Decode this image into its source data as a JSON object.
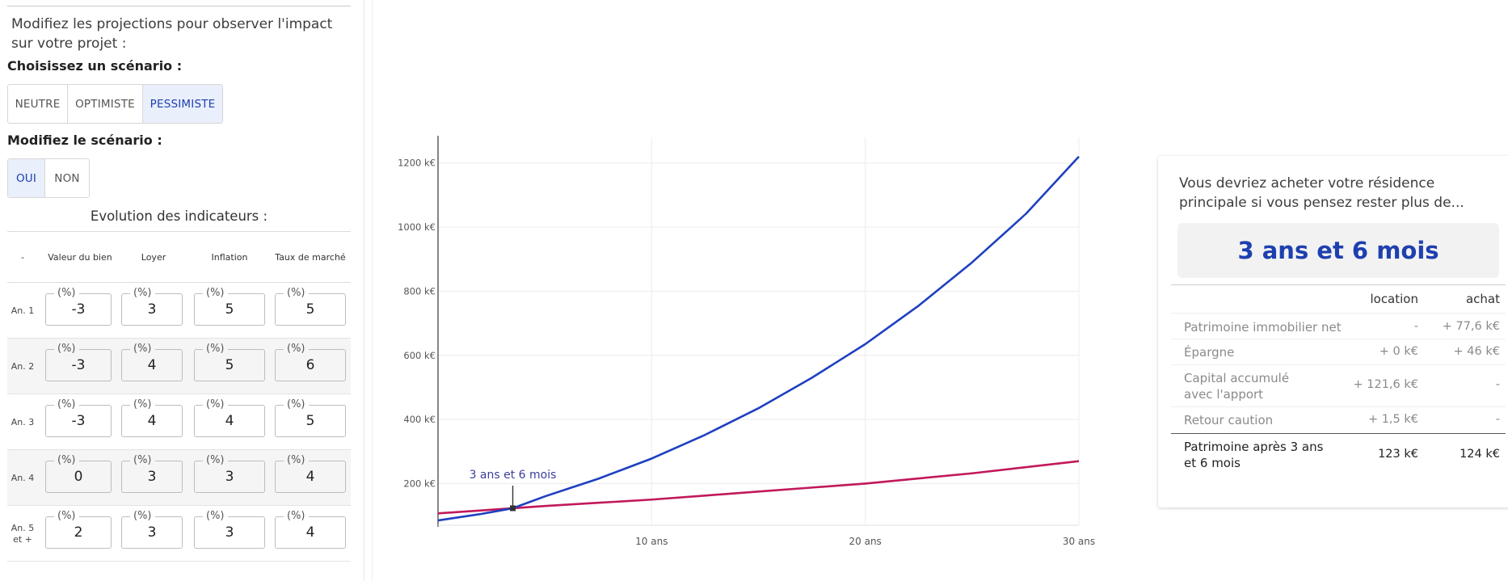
{
  "left": {
    "intro": "Modifiez les projections pour observer l'impact sur votre projet :",
    "scenario_label": "Choisissez un scénario :",
    "scenario_options": [
      "NEUTRE",
      "OPTIMISTE",
      "PESSIMISTE"
    ],
    "scenario_selected": "PESSIMISTE",
    "modify_label": "Modifiez le scénario :",
    "modify_options": [
      "OUI",
      "NON"
    ],
    "modify_selected": "OUI",
    "table_title": "Evolution des indicateurs :",
    "table_headers": [
      "-",
      "Valeur du bien",
      "Loyer",
      "Inflation",
      "Taux de marché"
    ],
    "unit_legend": "(%)",
    "rows": [
      {
        "year": "An. 1",
        "values": [
          "-3",
          "3",
          "5",
          "5"
        ]
      },
      {
        "year": "An. 2",
        "values": [
          "-3",
          "4",
          "5",
          "6"
        ]
      },
      {
        "year": "An. 3",
        "values": [
          "-3",
          "4",
          "4",
          "5"
        ]
      },
      {
        "year": "An. 4",
        "values": [
          "0",
          "3",
          "3",
          "4"
        ]
      },
      {
        "year": "An. 5 et +",
        "values": [
          "2",
          "3",
          "3",
          "4"
        ]
      }
    ]
  },
  "chart_data": {
    "type": "line",
    "title": "",
    "xlabel": "",
    "ylabel": "",
    "x_ticks": [
      "10 ans",
      "20 ans",
      "30 ans"
    ],
    "y_ticks": [
      "200 k€",
      "400 k€",
      "600 k€",
      "800 k€",
      "1000 k€",
      "1200 k€"
    ],
    "xlim": [
      0,
      30
    ],
    "ylim": [
      70,
      1280
    ],
    "series": [
      {
        "color": "#1e40c0",
        "x": [
          0,
          2,
          3.5,
          5,
          7.5,
          10,
          12.5,
          15,
          17.5,
          20,
          22.5,
          25,
          27.5,
          30
        ],
        "y": [
          85,
          105,
          123,
          160,
          215,
          278,
          352,
          435,
          530,
          635,
          755,
          890,
          1040,
          1220
        ]
      },
      {
        "color": "#c2185b",
        "x": [
          0,
          3.5,
          5,
          10,
          15,
          20,
          25,
          30
        ],
        "y": [
          107,
          123,
          130,
          150,
          175,
          200,
          232,
          270
        ]
      }
    ],
    "annotation": {
      "x": 3.5,
      "y": 123,
      "label": "3 ans et 6 mois"
    },
    "grid": true
  },
  "result": {
    "intro": "Vous devriez acheter votre résidence principale si vous pensez rester plus de...",
    "highlight": "3 ans et 6 mois",
    "headers": [
      "",
      "location",
      "achat"
    ],
    "rows": [
      {
        "label": "Patrimoine immobilier net",
        "location": "-",
        "achat": "+ 77,6 k€"
      },
      {
        "label": "Épargne",
        "location": "+ 0 k€",
        "achat": "+ 46 k€"
      },
      {
        "label": "Capital accumulé avec l'apport",
        "location": "+ 121,6 k€",
        "achat": "-"
      },
      {
        "label": "Retour caution",
        "location": "+ 1,5 k€",
        "achat": "-"
      }
    ],
    "total": {
      "label": "Patrimoine après 3 ans et 6 mois",
      "location": "123 k€",
      "achat": "124 k€"
    }
  }
}
